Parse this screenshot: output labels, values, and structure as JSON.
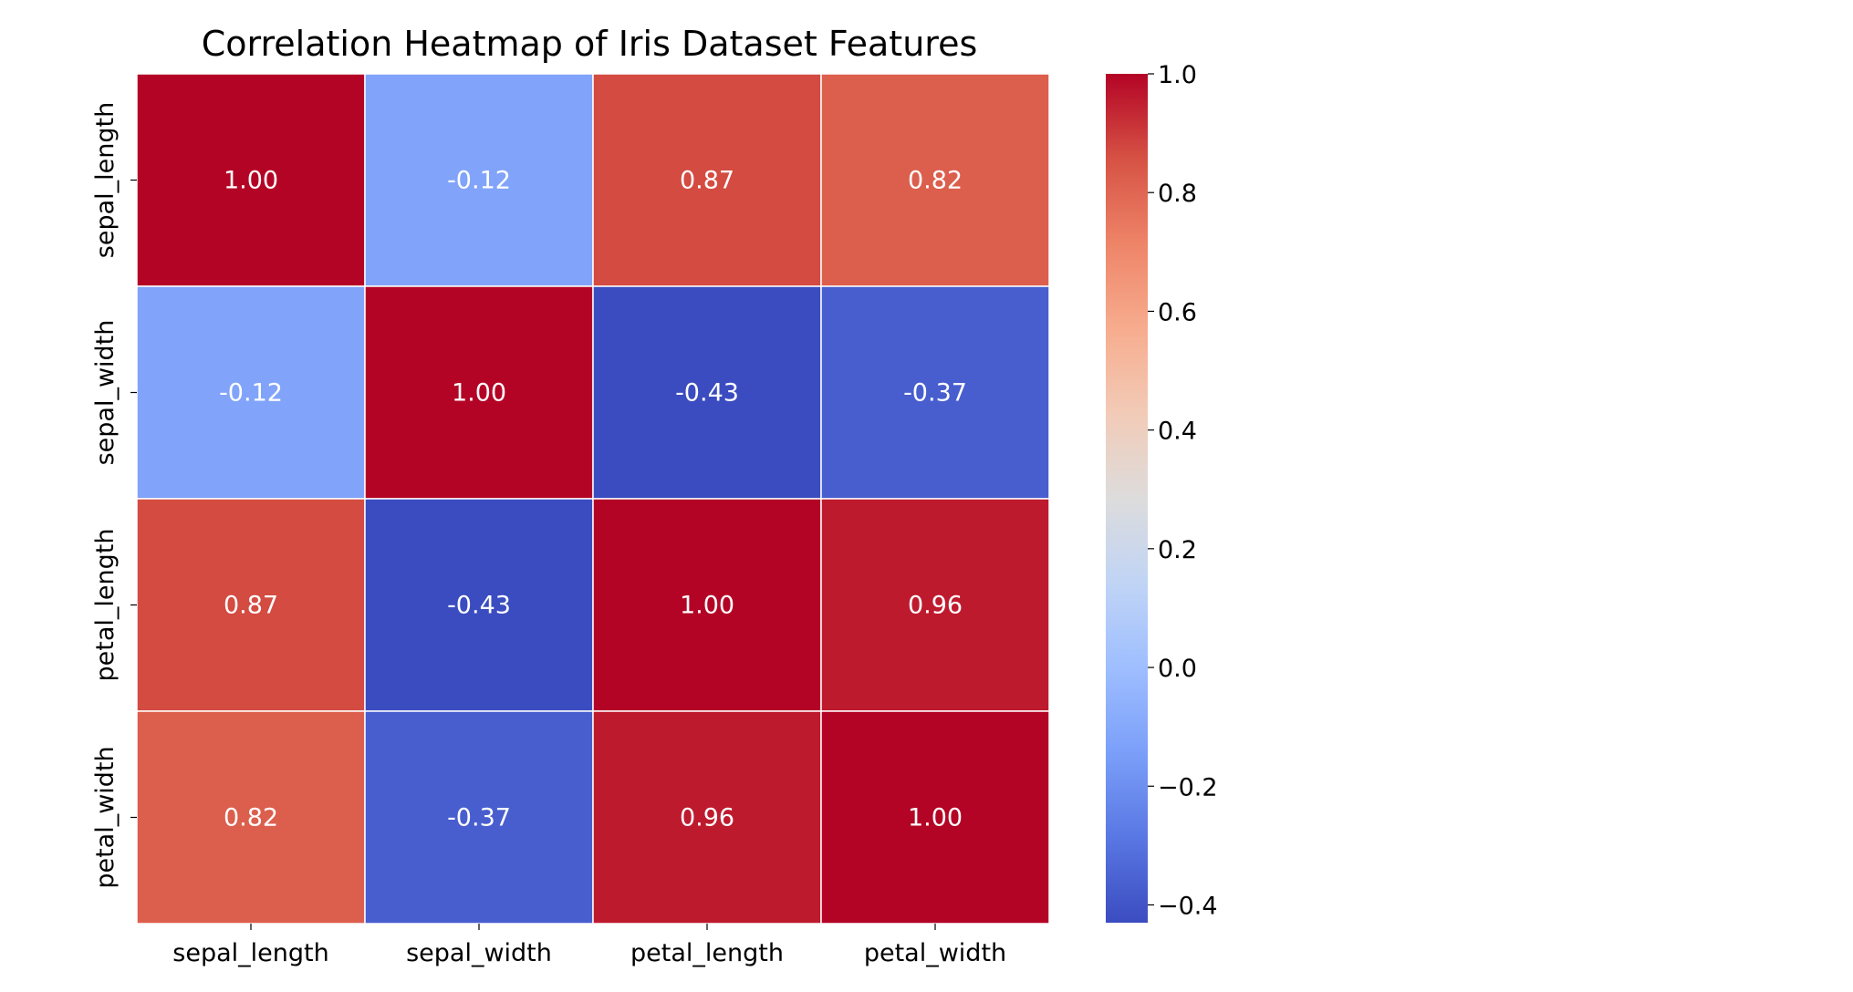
{
  "chart_data": {
    "type": "heatmap",
    "title": "Correlation Heatmap of Iris Dataset Features",
    "x_categories": [
      "sepal_length",
      "sepal_width",
      "petal_length",
      "petal_width"
    ],
    "y_categories": [
      "sepal_length",
      "sepal_width",
      "petal_length",
      "petal_width"
    ],
    "values": [
      [
        1.0,
        -0.12,
        0.87,
        0.82
      ],
      [
        -0.12,
        1.0,
        -0.43,
        -0.37
      ],
      [
        0.87,
        -0.43,
        1.0,
        0.96
      ],
      [
        0.82,
        -0.37,
        0.96,
        1.0
      ]
    ],
    "cell_labels": [
      [
        "1.00",
        "-0.12",
        "0.87",
        "0.82"
      ],
      [
        "-0.12",
        "1.00",
        "-0.43",
        "-0.37"
      ],
      [
        "0.87",
        "-0.43",
        "1.00",
        "0.96"
      ],
      [
        "0.82",
        "-0.37",
        "0.96",
        "1.00"
      ]
    ],
    "colormap": "coolwarm",
    "cell_text_color": "#ffffff",
    "cell_border_color": "#ffffff",
    "colorbar": {
      "range": [
        -0.43,
        1.0
      ],
      "ticks": [
        -0.4,
        -0.2,
        0.0,
        0.2,
        0.4,
        0.6,
        0.8,
        1.0
      ],
      "tick_labels": [
        "−0.4",
        "−0.2",
        "0.0",
        "0.2",
        "0.4",
        "0.6",
        "0.8",
        "1.0"
      ],
      "color_stops": [
        "#3b4cc0",
        "#5977e3",
        "#7b9ff9",
        "#9ebeff",
        "#c0d4f5",
        "#dddcdc",
        "#f2cbb7",
        "#f7ac8e",
        "#ee8468",
        "#d65244",
        "#b40426"
      ]
    }
  }
}
